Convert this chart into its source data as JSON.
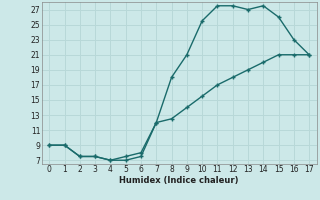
{
  "xlabel": "Humidex (Indice chaleur)",
  "bg_color": "#cce8e8",
  "grid_color": "#b8d8d8",
  "line_color": "#1a6b6b",
  "upper_x": [
    0,
    1,
    2,
    3,
    4,
    5,
    6,
    7,
    8,
    9,
    10,
    11,
    12,
    13,
    14,
    15,
    16,
    17
  ],
  "upper_y": [
    9,
    9,
    7.5,
    7.5,
    7,
    7.5,
    8,
    12,
    18,
    21,
    25.5,
    27.5,
    27.5,
    27,
    27.5,
    26,
    23,
    21
  ],
  "lower_x": [
    0,
    1,
    2,
    3,
    4,
    5,
    6,
    7,
    8,
    9,
    10,
    11,
    12,
    13,
    14,
    15,
    16,
    17
  ],
  "lower_y": [
    9,
    9,
    7.5,
    7.5,
    7,
    7,
    7.5,
    12,
    12.5,
    14,
    15.5,
    17,
    18,
    19,
    20,
    21,
    21,
    21
  ],
  "yticks": [
    7,
    9,
    11,
    13,
    15,
    17,
    19,
    21,
    23,
    25,
    27
  ],
  "ylim": [
    6.5,
    28.0
  ],
  "xlim": [
    -0.5,
    17.5
  ],
  "xticks": [
    0,
    1,
    2,
    3,
    4,
    5,
    6,
    7,
    8,
    9,
    10,
    11,
    12,
    13,
    14,
    15,
    16,
    17
  ]
}
